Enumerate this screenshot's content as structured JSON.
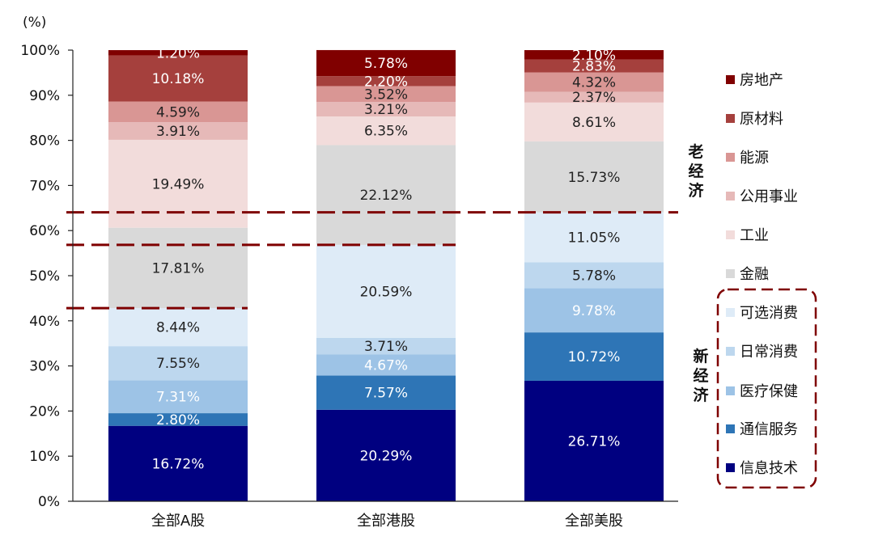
{
  "chart_data": {
    "type": "bar",
    "stacked": true,
    "y_unit_label": "(%)",
    "ylim": [
      0,
      100
    ],
    "y_ticks": [
      "0%",
      "10%",
      "20%",
      "30%",
      "40%",
      "50%",
      "60%",
      "70%",
      "80%",
      "90%",
      "100%"
    ],
    "categories": [
      "全部A股",
      "全部港股",
      "全部美股"
    ],
    "series": [
      {
        "name": "信息技术",
        "color": "#000080",
        "values": [
          16.72,
          20.29,
          26.71
        ]
      },
      {
        "name": "通信服务",
        "color": "#2E75B6",
        "values": [
          2.8,
          7.57,
          10.72
        ]
      },
      {
        "name": "医疗保健",
        "color": "#9DC3E6",
        "values": [
          7.31,
          4.67,
          9.78
        ]
      },
      {
        "name": "日常消费",
        "color": "#BDD7EE",
        "values": [
          7.55,
          3.71,
          5.78
        ]
      },
      {
        "name": "可选消费",
        "color": "#DEEBF7",
        "values": [
          8.44,
          20.59,
          11.05
        ]
      },
      {
        "name": "金融",
        "color": "#D9D9D9",
        "values": [
          17.81,
          22.12,
          15.73
        ]
      },
      {
        "name": "工业",
        "color": "#F2DCDB",
        "values": [
          19.49,
          6.35,
          8.61
        ]
      },
      {
        "name": "公用事业",
        "color": "#E6B9B8",
        "values": [
          3.91,
          3.21,
          2.37
        ]
      },
      {
        "name": "能源",
        "color": "#D99694",
        "values": [
          4.59,
          3.52,
          4.32
        ]
      },
      {
        "name": "原材料",
        "color": "#A5403D",
        "values": [
          10.18,
          2.2,
          2.83
        ]
      },
      {
        "name": "房地产",
        "color": "#800000",
        "values": [
          1.2,
          5.78,
          2.1
        ]
      }
    ],
    "data_labels": [
      [
        "16.72%",
        "20.29%",
        "26.71%"
      ],
      [
        "2.80%",
        "7.57%",
        "10.72%"
      ],
      [
        "7.31%",
        "4.67%",
        "9.78%"
      ],
      [
        "7.55%",
        "3.71%",
        "5.78%"
      ],
      [
        "8.44%",
        "20.59%",
        "11.05%"
      ],
      [
        "17.81%",
        "22.12%",
        "15.73%"
      ],
      [
        "19.49%",
        "6.35%",
        "8.61%"
      ],
      [
        "3.91%",
        "3.21%",
        "2.37%"
      ],
      [
        "4.59%",
        "3.52%",
        "4.32%"
      ],
      [
        "10.18%",
        "2.20%",
        "2.83%"
      ],
      [
        "1.20%",
        "5.78%",
        "2.10%"
      ]
    ],
    "legend_order": [
      "房地产",
      "原材料",
      "能源",
      "公用事业",
      "工业",
      "金融",
      "可选消费",
      "日常消费",
      "医疗保健",
      "通信服务",
      "信息技术"
    ],
    "legend_position": "right",
    "group_labels": {
      "old_economy": "老经济",
      "new_economy": "新经济"
    },
    "divider_color": "#7F0000",
    "grid": false
  }
}
